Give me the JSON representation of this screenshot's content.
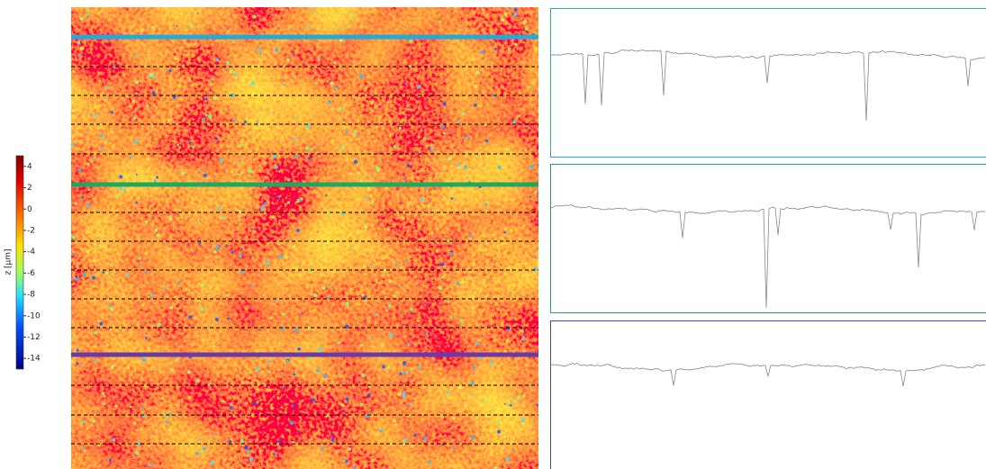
{
  "chart_data": {
    "type": "heatmap",
    "colorbar_label": "z [µm]",
    "ylim": [
      -15,
      5
    ],
    "yticks": [
      4,
      2,
      0,
      -2,
      -4,
      -6,
      -8,
      -10,
      -12,
      -14
    ]
  }
}
